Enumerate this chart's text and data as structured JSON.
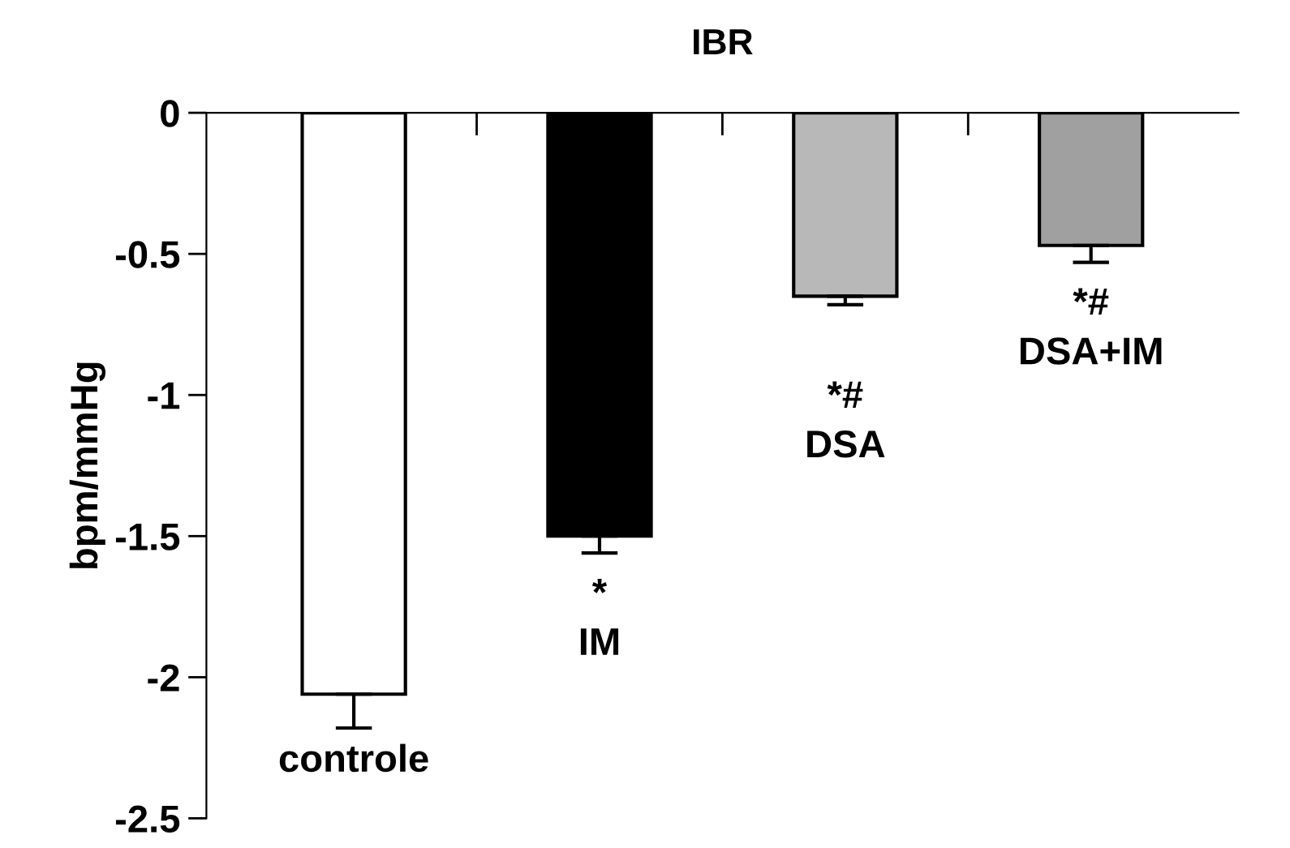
{
  "chart_data": {
    "type": "bar",
    "title": "IBR",
    "ylabel": "bpm/mmHg",
    "categories": [
      "controle",
      "IM",
      "DSA",
      "DSA+IM"
    ],
    "values": [
      -2.06,
      -1.5,
      -0.65,
      -0.47
    ],
    "errors": [
      [
        -2.18,
        -2.06
      ],
      [
        -1.56,
        -1.5
      ],
      [
        -0.68,
        -0.65
      ],
      [
        -0.53,
        -0.47
      ]
    ],
    "colors": [
      "#ffffff",
      "#000000",
      "#b8b8b8",
      "#a0a0a0"
    ],
    "ylim": [
      -2.5,
      0
    ],
    "yticks": [
      0,
      -0.5,
      -1,
      -1.5,
      -2,
      -2.5
    ],
    "grid": false,
    "legend": false,
    "annotations": [
      "*",
      "*#",
      "*#"
    ]
  }
}
